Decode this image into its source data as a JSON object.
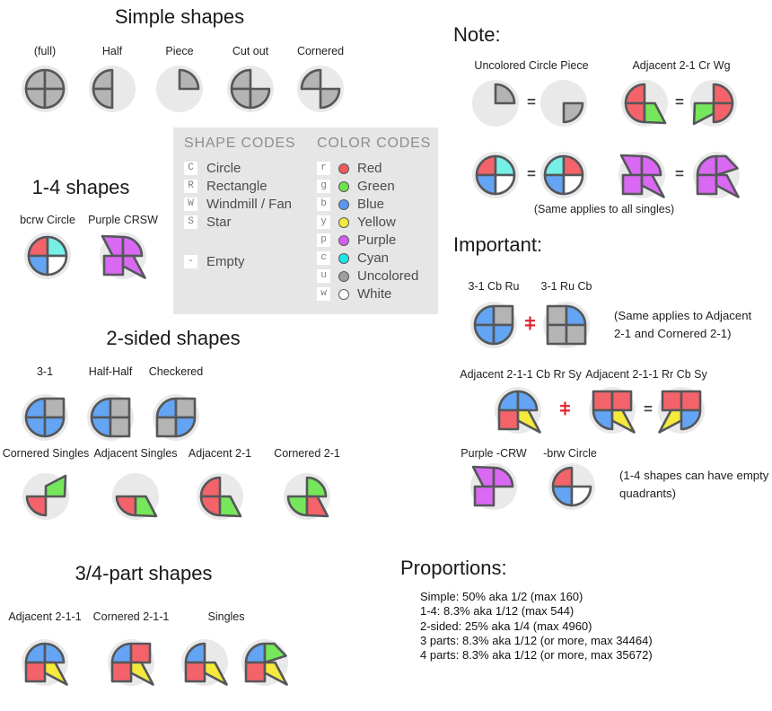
{
  "symbols": {
    "equals": "="
  },
  "colors": {
    "red": "#f4636a",
    "green": "#76e75a",
    "blue": "#64a4f4",
    "yellow": "#f5e93c",
    "purple": "#d968f2",
    "cyan": "#76f0e6",
    "uncolored": "#b4b4b4",
    "white": "#ffffff",
    "outline": "#55575a",
    "shape_bg": "#e9e9e9",
    "neq": "#dd2430"
  },
  "sections": {
    "simple": {
      "title": "Simple shapes",
      "items": [
        {
          "label": "(full)",
          "shape": {
            "TL": "circle:uncolored",
            "TR": "circle:uncolored",
            "BL": "circle:uncolored",
            "BR": "circle:uncolored"
          }
        },
        {
          "label": "Half",
          "shape": {
            "TL": "circle:uncolored",
            "BL": "circle:uncolored"
          }
        },
        {
          "label": "Piece",
          "shape": {
            "TR": "circle:uncolored"
          }
        },
        {
          "label": "Cut out",
          "shape": {
            "TL": "circle:uncolored",
            "BL": "circle:uncolored",
            "BR": "circle:uncolored"
          }
        },
        {
          "label": "Cornered",
          "shape": {
            "TL": "circle:uncolored",
            "BR": "circle:uncolored"
          }
        }
      ]
    },
    "one_four": {
      "title": "1-4 shapes",
      "items": [
        {
          "label": "bcrw Circle",
          "shape": {
            "TL": "circle:red",
            "TR": "circle:cyan",
            "BL": "circle:blue",
            "BR": "circle:white"
          }
        },
        {
          "label": "Purple CRSW",
          "shape": {
            "TL": "windmill:purple",
            "TR": "circle:purple",
            "BL": "rect:purple",
            "BR": "star:purple"
          }
        }
      ]
    },
    "legend": {
      "shape_codes_title": "SHAPE CODES",
      "shape_codes": [
        {
          "code": "C",
          "label": "Circle"
        },
        {
          "code": "R",
          "label": "Rectangle"
        },
        {
          "code": "W",
          "label": "Windmill / Fan"
        },
        {
          "code": "S",
          "label": "Star"
        }
      ],
      "empty_code": {
        "code": "-",
        "label": "Empty"
      },
      "color_codes_title": "COLOR CODES",
      "color_codes": [
        {
          "code": "r",
          "label": "Red",
          "hex": "#ef5a5e"
        },
        {
          "code": "g",
          "label": "Green",
          "hex": "#6ce24e"
        },
        {
          "code": "b",
          "label": "Blue",
          "hex": "#5b97f0"
        },
        {
          "code": "y",
          "label": "Yellow",
          "hex": "#f2ea3c"
        },
        {
          "code": "p",
          "label": "Purple",
          "hex": "#d45cf0"
        },
        {
          "code": "c",
          "label": "Cyan",
          "hex": "#16e8e8"
        },
        {
          "code": "u",
          "label": "Uncolored",
          "hex": "#9e9e9e"
        },
        {
          "code": "w",
          "label": "White",
          "hex": "#ffffff"
        }
      ]
    },
    "two_sided": {
      "title": "2-sided shapes",
      "row1": [
        {
          "label": "3-1",
          "shape": {
            "TL": "circle:blue",
            "TR": "rect:uncolored",
            "BL": "circle:blue",
            "BR": "circle:blue"
          }
        },
        {
          "label": "Half-Half",
          "shape": {
            "TL": "circle:blue",
            "TR": "rect:uncolored",
            "BL": "circle:blue",
            "BR": "rect:uncolored"
          }
        },
        {
          "label": "Checkered",
          "shape": {
            "TL": "circle:blue",
            "TR": "rect:uncolored",
            "BL": "rect:uncolored",
            "BR": "circle:blue"
          }
        }
      ],
      "row2": [
        {
          "label": "Cornered Singles",
          "shape": {
            "TR": "windmill:green",
            "BL": "circle:red"
          }
        },
        {
          "label": "Adjacent Singles",
          "shape": {
            "BL": "circle:red",
            "BR": "windmill:green"
          }
        },
        {
          "label": "Adjacent 2-1",
          "shape": {
            "TL": "circle:red",
            "BL": "circle:red",
            "BR": "windmill:green"
          }
        },
        {
          "label": "Cornered 2-1",
          "shape": {
            "TR": "circle:green",
            "BL": "circle:green",
            "BR": "windmill:red"
          }
        }
      ]
    },
    "three_four": {
      "title": "3/4-part shapes",
      "labels": [
        "Adjacent 2-1-1",
        "Cornered 2-1-1",
        "Singles"
      ],
      "shapes": [
        {
          "TL": "circle:blue",
          "TR": "circle:blue",
          "BL": "rect:red",
          "BR": "star:yellow"
        },
        {
          "TL": "circle:blue",
          "TR": "rect:red",
          "BL": "rect:red",
          "BR": "star:yellow"
        },
        {
          "TL": "circle:blue",
          "BL": "rect:red",
          "BR": "star:yellow"
        },
        {
          "TL": "circle:blue",
          "TR": "windmill2:green",
          "BL": "rect:red",
          "BR": "star:yellow"
        }
      ]
    },
    "note": {
      "title": "Note:",
      "pair1_label": "Uncolored Circle Piece",
      "pair1_left": {
        "TR": "circle:uncolored"
      },
      "pair1_right": {
        "BR": "circle:uncolored"
      },
      "pair2_label": "Adjacent 2-1 Cr Wg",
      "pair2_left": {
        "TL": "circle:red",
        "BL": "circle:red",
        "BR": "windmill:green"
      },
      "pair2_right": {
        "TR": "circle:red",
        "BR": "circle:red",
        "BL": "windmill:green"
      },
      "pair3_left": {
        "TL": "circle:red",
        "TR": "circle:cyan",
        "BL": "circle:blue",
        "BR": "circle:white"
      },
      "pair3_right": {
        "TL": "circle:cyan",
        "TR": "circle:red",
        "BL": "circle:blue",
        "BR": "circle:white"
      },
      "pair4_left": {
        "TL": "windmill:purple",
        "TR": "circle:purple",
        "BL": "rect:purple",
        "BR": "star:purple"
      },
      "pair4_right": {
        "TL": "circle:purple",
        "TR": "windmill2:purple",
        "BL": "rect:purple",
        "BR": "star:purple"
      },
      "caption": "(Same applies to all singles)"
    },
    "important": {
      "title": "Important:",
      "row1_label_left": "3-1 Cb Ru",
      "row1_label_right": "3-1 Ru Cb",
      "row1_left": {
        "TL": "circle:blue",
        "TR": "rect:uncolored",
        "BL": "circle:blue",
        "BR": "circle:blue"
      },
      "row1_right": {
        "TL": "rect:uncolored",
        "TR": "circle:blue",
        "BL": "rect:uncolored",
        "BR": "rect:uncolored"
      },
      "row1_note_line1": "(Same applies to Adjacent",
      "row1_note_line2": "2-1 and Cornered 2-1)",
      "row2_label_left": "Adjacent 2-1-1 Cb Rr Sy",
      "row2_label_right": "Adjacent 2-1-1 Rr Cb Sy",
      "row2_a": {
        "TL": "circle:blue",
        "TR": "circle:blue",
        "BL": "rect:red",
        "BR": "star:yellow"
      },
      "row2_b": {
        "TL": "rect:red",
        "TR": "rect:red",
        "BL": "circle:blue",
        "BR": "star:yellow"
      },
      "row2_c": {
        "TL": "rect:red",
        "TR": "rect:red",
        "BL": "star:yellow",
        "BR": "circle:blue"
      },
      "row3_label_left": "Purple -CRW",
      "row3_label_right": "-brw Circle",
      "row3_left": {
        "TL": "windmill:purple",
        "TR": "circle:purple",
        "BL": "rect:purple"
      },
      "row3_right": {
        "TL": "circle:red",
        "BL": "circle:blue",
        "BR": "circle:white"
      },
      "row3_note_line1": "(1-4 shapes can have empty",
      "row3_note_line2": "quadrants)"
    },
    "proportions": {
      "title": "Proportions:",
      "lines": [
        "Simple: 50% aka 1/2 (max 160)",
        "1-4: 8.3% aka 1/12 (max 544)",
        "2-sided: 25% aka 1/4 (max 4960)",
        "3 parts: 8.3% aka 1/12 (or more, max 34464)",
        "4 parts: 8.3% aka 1/12 (or more, max 35672)"
      ]
    }
  }
}
